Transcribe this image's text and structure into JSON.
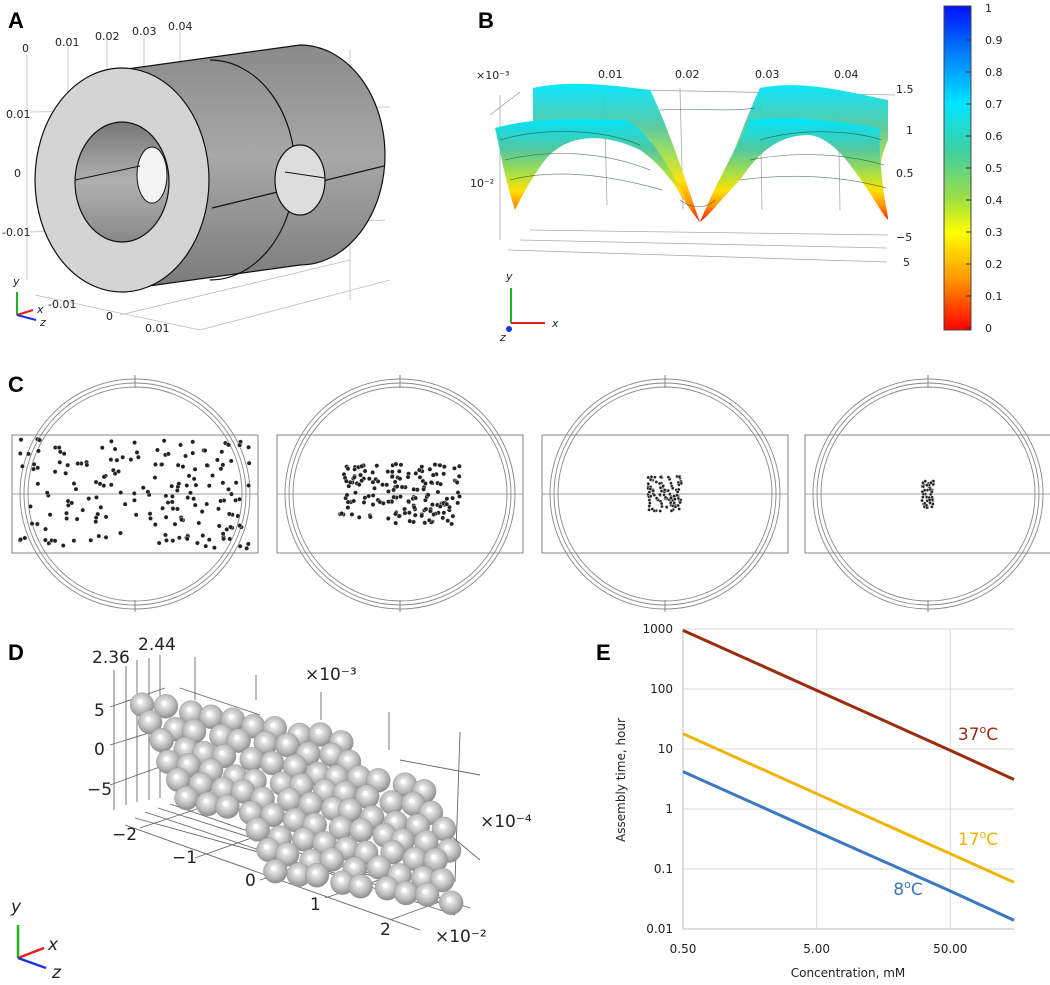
{
  "panels": {
    "a": {
      "label": "A",
      "top_ticks": [
        "0",
        "0.01",
        "0.02",
        "0.03",
        "0.04"
      ],
      "left_ticks": [
        "0.01",
        "0",
        "-0.01"
      ],
      "bottom_ticks": [
        "-0.01",
        "0",
        "0.01"
      ],
      "axes": {
        "y": "y",
        "x": "x",
        "z": "z"
      }
    },
    "b": {
      "label": "B",
      "multiplier": "×10⁻³",
      "left_multiplier": "10⁻²",
      "top_ticks": [
        "0.01",
        "0.02",
        "0.03",
        "0.04"
      ],
      "right_ticks": [
        "1.5",
        "1",
        "0.5"
      ],
      "depth_ticks": [
        "−5",
        "5"
      ],
      "colorbar_ticks": [
        "1",
        "0.9",
        "0.8",
        "0.7",
        "0.6",
        "0.5",
        "0.4",
        "0.3",
        "0.2",
        "0.1",
        "0"
      ],
      "colormap": [
        "#0000ff",
        "#0080ff",
        "#00e5ff",
        "#50d0a0",
        "#a0e040",
        "#ffff00",
        "#ffa000",
        "#ff0000"
      ],
      "axes": {
        "y": "y",
        "x": "x",
        "z": "z"
      }
    },
    "c": {
      "label": "C",
      "frames": 4
    },
    "d": {
      "label": "D",
      "top_ticks": [
        "2.36",
        "2.44"
      ],
      "multiplier_top": "×10⁻³",
      "left_ticks": [
        "5",
        "0",
        "−5"
      ],
      "multiplier_right": "×10⁻⁴",
      "bottom_ticks": [
        "−2",
        "−1",
        "0",
        "1",
        "2"
      ],
      "multiplier_bottom": "×10⁻²",
      "axes": {
        "y": "y",
        "x": "x",
        "z": "z"
      }
    },
    "e": {
      "label": "E"
    }
  },
  "chart_data": {
    "type": "line",
    "title": "",
    "xlabel": "Concentration, mM",
    "ylabel": "Assembly  time, hour",
    "x_scale": "log",
    "y_scale": "log",
    "xlim": [
      0.5,
      150
    ],
    "ylim": [
      0.01,
      1000
    ],
    "x_ticks": [
      "0.50",
      "5.00",
      "50.00"
    ],
    "x_tick_values": [
      0.5,
      5,
      50
    ],
    "y_ticks": [
      "1000",
      "100",
      "10",
      "1",
      "0.1",
      "0.01"
    ],
    "y_tick_values": [
      1000,
      100,
      10,
      1,
      0.1,
      0.01
    ],
    "grid": true,
    "x": [
      0.5,
      5,
      50,
      150
    ],
    "series": [
      {
        "name": "37ºC",
        "label_main": "37",
        "label_unit": "C",
        "color": "#9b2c0e",
        "values": [
          950,
          95,
          9.5,
          3.1
        ]
      },
      {
        "name": "17ºC",
        "label_main": "17",
        "label_unit": "C",
        "color": "#f0b400",
        "values": [
          18,
          1.8,
          0.18,
          0.06
        ]
      },
      {
        "name": "8ºC",
        "label_main": "8",
        "label_unit": "C",
        "color": "#3a78c0",
        "values": [
          4.2,
          0.42,
          0.043,
          0.014
        ]
      }
    ]
  }
}
